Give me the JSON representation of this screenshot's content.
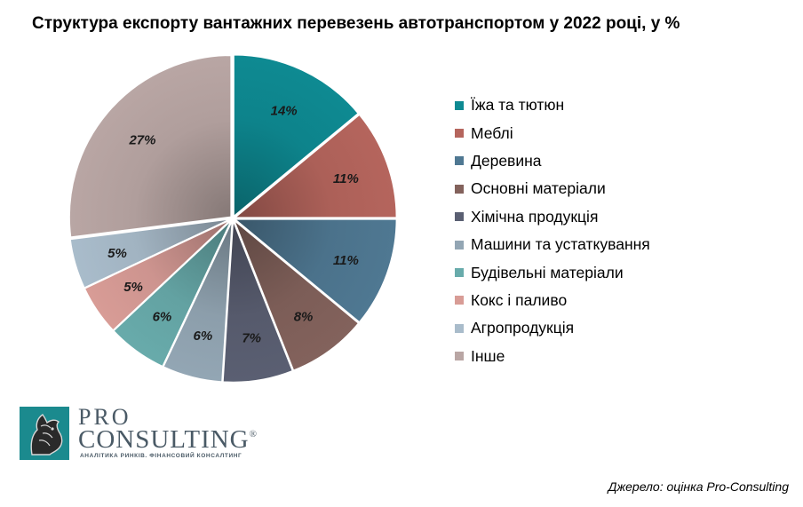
{
  "chart_data": {
    "type": "pie",
    "title": "Структура експорту вантажних перевезень автотранспортом у 2022 році, у %",
    "legend_position": "right",
    "slices": [
      {
        "label": "Їжа та тютюн",
        "value": 14,
        "value_label": "14%",
        "color": "#0e8a92"
      },
      {
        "label": "Меблі",
        "value": 11,
        "value_label": "11%",
        "color": "#b5655d"
      },
      {
        "label": "Деревина",
        "value": 11,
        "value_label": "11%",
        "color": "#4f7892"
      },
      {
        "label": "Основні матеріали",
        "value": 8,
        "value_label": "8%",
        "color": "#83625c"
      },
      {
        "label": "Хімічна продукція",
        "value": 7,
        "value_label": "7%",
        "color": "#5a5f72"
      },
      {
        "label": "Машини та устаткування",
        "value": 6,
        "value_label": "6%",
        "color": "#93a6b4"
      },
      {
        "label": "Будівельні матеріали",
        "value": 6,
        "value_label": "6%",
        "color": "#68abab"
      },
      {
        "label": "Кокс і паливо",
        "value": 5,
        "value_label": "5%",
        "color": "#d89c96"
      },
      {
        "label": "Агропродукція",
        "value": 5,
        "value_label": "5%",
        "color": "#a9bccb"
      },
      {
        "label": "Інше",
        "value": 27,
        "value_label": "27%",
        "color": "#b9a6a4"
      }
    ]
  },
  "logo": {
    "pro": "PRO",
    "consulting": "CONSULTING",
    "registered": "®",
    "tagline": "АНАЛІТИКА РИНКІВ. ФІНАНСОВИЙ КОНСАЛТИНГ"
  },
  "source": "Джерело: оцінка Pro-Consulting"
}
